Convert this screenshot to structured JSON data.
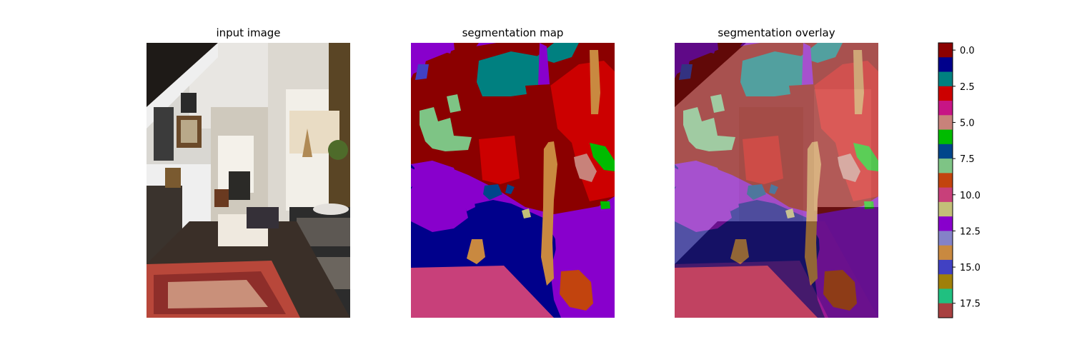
{
  "titles": {
    "input": "input image",
    "segmap": "segmentation map",
    "overlay": "segmentation overlay"
  },
  "chart_data": {
    "type": "heatmap",
    "panels": [
      "input image",
      "segmentation map",
      "segmentation overlay"
    ],
    "colorbar": {
      "min": 0,
      "max": 18,
      "tick_values": [
        0,
        2.5,
        5,
        7.5,
        10,
        12.5,
        15,
        17.5
      ],
      "tick_labels": [
        "0.0",
        "2.5",
        "5.0",
        "7.5",
        "10.0",
        "12.5",
        "15.0",
        "17.5"
      ],
      "class_colors": [
        "#8b0000",
        "#00008b",
        "#008080",
        "#cc0000",
        "#c71585",
        "#c8827a",
        "#00bb00",
        "#00468b",
        "#7ec485",
        "#c2440e",
        "#c8407a",
        "#c3bf78",
        "#8800cc",
        "#8482c8",
        "#c98940",
        "#4141c3",
        "#a0800a",
        "#20c080",
        "#a84040"
      ],
      "placement": "right"
    },
    "segmentation_classes_present": [
      0,
      1,
      2,
      3,
      6,
      7,
      8,
      9,
      10,
      11,
      12,
      13,
      14
    ]
  }
}
